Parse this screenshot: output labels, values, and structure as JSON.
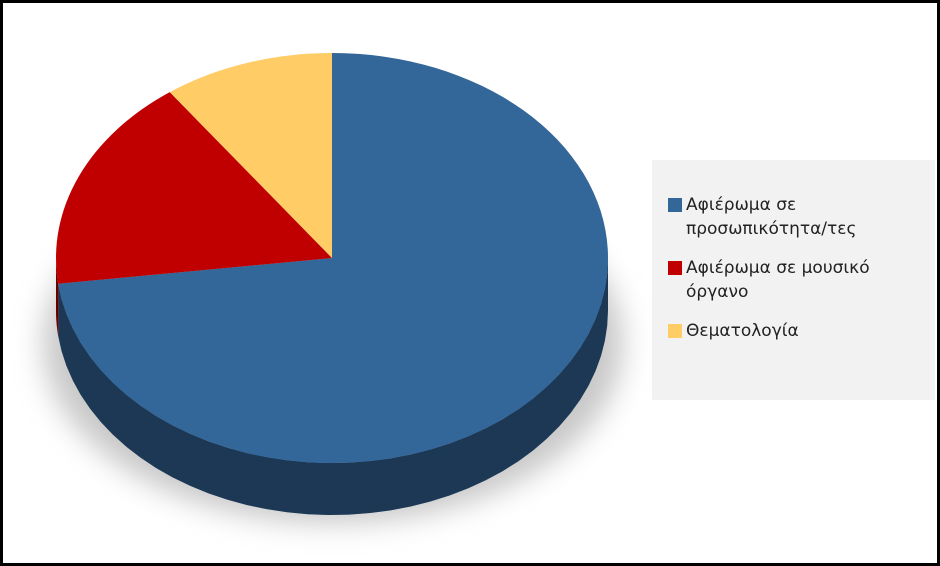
{
  "chart_data": {
    "type": "pie",
    "categories": [
      "Αφιέρωμα σε προσωπικότητα/τες",
      "Αφιέρωμα σε μουσικό όργανο",
      "Θεματολογία"
    ],
    "values": [
      73,
      17,
      10
    ],
    "colors": [
      "#336699",
      "#c00000",
      "#ffcc66"
    ],
    "legend": "right"
  }
}
